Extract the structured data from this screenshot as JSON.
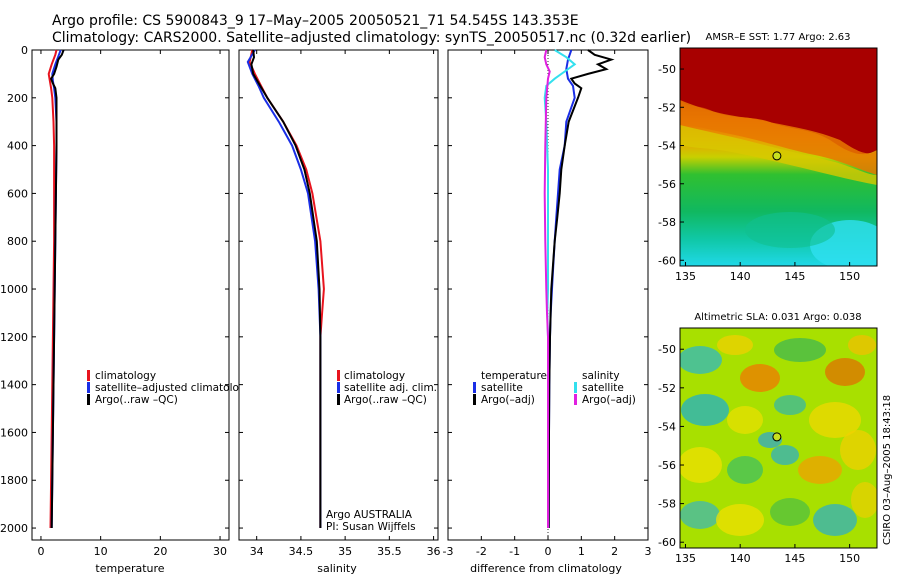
{
  "header": {
    "line1": "Argo profile: CS 5900843_9 17–May–2005 20050521_71 54.545S 143.353E",
    "line2": "Climatology: CARS2000. Satellite–adjusted climatology: synTS_20050517.nc (0.32d earlier)"
  },
  "colors": {
    "climatology": "#e8141e",
    "satellite": "#1a2ee6",
    "argo": "#000000",
    "salinity": "#33e0ee",
    "salinity_satellite": "#33e0ee",
    "salinity_argo": "#e020e0"
  },
  "chart_data": [
    {
      "type": "line",
      "id": "temperature",
      "xlabel": "temperature",
      "ylabel": "",
      "xlim": [
        -1.5,
        31.5
      ],
      "ylim": [
        2050,
        0
      ],
      "xticks": [
        0,
        10,
        20,
        30
      ],
      "yticks": [
        0,
        200,
        400,
        600,
        800,
        1000,
        1200,
        1400,
        1600,
        1800,
        2000
      ],
      "legend": [
        "climatology",
        "satellite–adjusted climatology",
        "Argo(..raw –QC)"
      ],
      "series": [
        {
          "name": "climatology",
          "color": "#e8141e",
          "depth": [
            0,
            20,
            60,
            100,
            130,
            160,
            200,
            300,
            400,
            600,
            800,
            1000,
            1200,
            1400,
            1600,
            1800,
            2000
          ],
          "values": [
            2.6,
            2.4,
            1.8,
            1.3,
            1.5,
            1.7,
            1.9,
            2.1,
            2.2,
            2.2,
            2.2,
            2.1,
            2.0,
            1.9,
            1.8,
            1.7,
            1.6
          ]
        },
        {
          "name": "satellite–adjusted climatology",
          "color": "#1a2ee6",
          "depth": [
            0,
            20,
            60,
            100,
            130,
            160,
            200,
            300,
            400,
            600,
            800,
            1000,
            1200,
            1400,
            1600,
            1800,
            2000
          ],
          "values": [
            3.3,
            3.0,
            2.4,
            1.9,
            2.0,
            2.2,
            2.4,
            2.6,
            2.6,
            2.5,
            2.4,
            2.3,
            2.2,
            2.1,
            2.0,
            1.9,
            1.8
          ]
        },
        {
          "name": "Argo(..raw –QC)",
          "color": "#000000",
          "depth": [
            0,
            20,
            40,
            70,
            100,
            120,
            140,
            160,
            200,
            300,
            400,
            600,
            800,
            1000,
            1200,
            1400,
            1600,
            1800,
            2000
          ],
          "values": [
            3.8,
            3.5,
            2.9,
            2.6,
            2.2,
            1.7,
            2.0,
            2.4,
            2.6,
            2.6,
            2.6,
            2.5,
            2.4,
            2.3,
            2.2,
            2.1,
            2.0,
            1.9,
            1.8
          ]
        }
      ]
    },
    {
      "type": "line",
      "id": "salinity",
      "xlabel": "salinity",
      "ylabel": "",
      "xlim": [
        33.8,
        36.05
      ],
      "ylim": [
        2050,
        0
      ],
      "xticks": [
        34,
        34.5,
        35,
        35.5,
        36
      ],
      "legend": [
        "climatology",
        "satellite adj. clim.",
        "Argo(..raw –QC)"
      ],
      "annotation": [
        "Argo AUSTRALIA",
        "PI: Susan Wijffels"
      ],
      "series": [
        {
          "name": "climatology",
          "color": "#e8141e",
          "depth": [
            0,
            50,
            100,
            150,
            200,
            300,
            400,
            500,
            600,
            800,
            1000,
            1100,
            1200,
            1400,
            1600,
            1800,
            2000
          ],
          "values": [
            33.95,
            33.92,
            33.98,
            34.05,
            34.12,
            34.3,
            34.45,
            34.56,
            34.63,
            34.72,
            34.76,
            34.74,
            34.72,
            34.72,
            34.72,
            34.72,
            34.72
          ]
        },
        {
          "name": "satellite adj. clim.",
          "color": "#1a2ee6",
          "depth": [
            0,
            50,
            100,
            150,
            200,
            300,
            400,
            500,
            600,
            800,
            1000,
            1200,
            1400,
            1600,
            1800,
            2000
          ],
          "values": [
            33.98,
            33.9,
            33.95,
            34.02,
            34.08,
            34.25,
            34.4,
            34.5,
            34.58,
            34.66,
            34.7,
            34.72,
            34.72,
            34.72,
            34.72,
            34.72
          ]
        },
        {
          "name": "Argo(..raw –QC)",
          "color": "#000000",
          "depth": [
            0,
            30,
            60,
            100,
            150,
            200,
            300,
            400,
            500,
            600,
            800,
            1000,
            1200,
            1400,
            1600,
            1800,
            2000
          ],
          "values": [
            33.96,
            33.97,
            33.94,
            33.96,
            34.04,
            34.12,
            34.3,
            34.44,
            34.54,
            34.6,
            34.68,
            34.71,
            34.72,
            34.72,
            34.72,
            34.72,
            34.72
          ]
        }
      ]
    },
    {
      "type": "line",
      "id": "difference",
      "xlabel": "difference from climatology",
      "ylabel": "",
      "xlim": [
        -3,
        3
      ],
      "ylim": [
        2050,
        0
      ],
      "xticks": [
        -3,
        -2,
        -1,
        0,
        1,
        2,
        3
      ],
      "legend_left": [
        "temperature",
        "satellite",
        "Argo(–adj)"
      ],
      "legend_right": [
        "salinity",
        "satellite",
        "Argo(–adj)"
      ],
      "series": [
        {
          "name": "temperature satellite",
          "color": "#1a2ee6",
          "depth": [
            0,
            40,
            80,
            120,
            150,
            200,
            300,
            400,
            500,
            600,
            700,
            800,
            900,
            1000,
            1100,
            1200,
            1400,
            1600,
            1800,
            2000
          ],
          "values": [
            0.7,
            0.6,
            0.55,
            0.6,
            0.75,
            0.8,
            0.55,
            0.5,
            0.35,
            0.3,
            0.25,
            0.2,
            0.16,
            0.12,
            0.08,
            0.06,
            0.04,
            0.03,
            0.02,
            0.02
          ]
        },
        {
          "name": "temperature Argo(–adj)",
          "color": "#000000",
          "depth": [
            0,
            20,
            40,
            60,
            80,
            100,
            120,
            140,
            160,
            200,
            300,
            400,
            500,
            600,
            700,
            800,
            900,
            1000,
            1200,
            1400,
            1600,
            2000
          ],
          "values": [
            1.2,
            1.4,
            1.9,
            1.5,
            1.75,
            1.2,
            0.7,
            0.8,
            1.0,
            0.9,
            0.62,
            0.5,
            0.4,
            0.35,
            0.28,
            0.2,
            0.15,
            0.1,
            0.06,
            0.04,
            0.03,
            0.02
          ]
        },
        {
          "name": "salinity satellite",
          "color": "#33e0ee",
          "depth": [
            0,
            30,
            60,
            90,
            120,
            150,
            200,
            300,
            500,
            700,
            900,
            1000,
            1100,
            1200,
            1400,
            1600,
            2000
          ],
          "values": [
            0.2,
            0.55,
            0.8,
            0.5,
            0.2,
            -0.05,
            -0.1,
            -0.05,
            0.0,
            0.0,
            0.0,
            0.0,
            -0.02,
            0.0,
            0.0,
            0.0,
            0.0
          ]
        },
        {
          "name": "salinity Argo(–adj)",
          "color": "#e020e0",
          "depth": [
            0,
            30,
            60,
            90,
            120,
            200,
            400,
            600,
            800,
            1000,
            1100,
            1200,
            1400,
            1600,
            2000
          ],
          "values": [
            -0.05,
            -0.1,
            -0.05,
            0.05,
            0.0,
            -0.05,
            -0.08,
            -0.1,
            -0.08,
            -0.05,
            -0.03,
            0.0,
            0.0,
            0.0,
            0.0
          ]
        }
      ]
    },
    {
      "type": "heatmap",
      "id": "sst_map",
      "title": "AMSR–E SST: 1.77 Argo: 2.63",
      "xlim": [
        134.5,
        152.5
      ],
      "ylim": [
        -60.3,
        -48.9
      ],
      "xticks": [
        135,
        140,
        145,
        150
      ],
      "yticks": [
        -50,
        -52,
        -54,
        -56,
        -58,
        -60
      ],
      "marker": {
        "lon": 143.353,
        "lat": -54.545
      }
    },
    {
      "type": "heatmap",
      "id": "sla_map",
      "title": "Altimetric SLA: 0.031 Argo: 0.038",
      "xlim": [
        134.5,
        152.5
      ],
      "ylim": [
        -60.3,
        -48.9
      ],
      "xticks": [
        135,
        140,
        145,
        150
      ],
      "yticks": [
        -50,
        -52,
        -54,
        -56,
        -58,
        -60
      ],
      "marker": {
        "lon": 143.353,
        "lat": -54.545
      },
      "side_label": "CSIRO 03–Aug–2005 18:43:18"
    }
  ]
}
